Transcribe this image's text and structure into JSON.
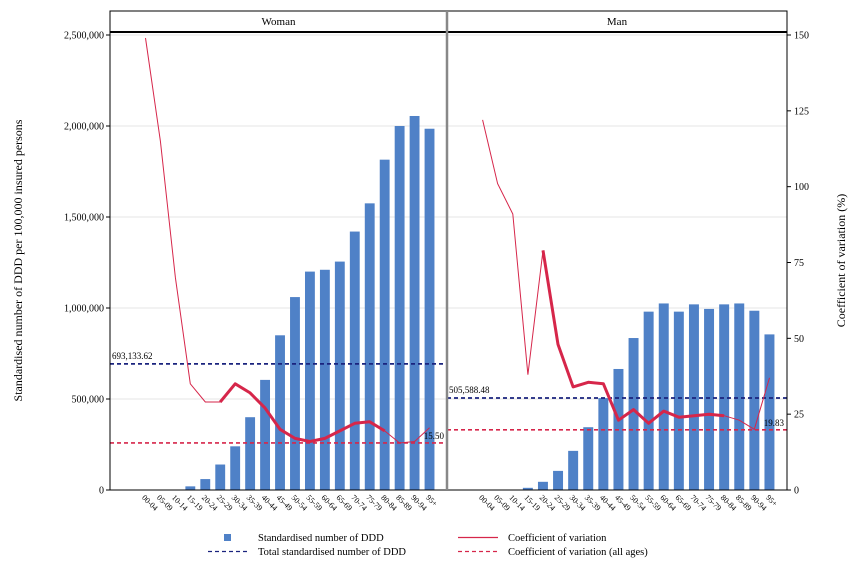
{
  "chart_data": {
    "type": "bar",
    "panels": [
      {
        "title": "Woman",
        "categories": [
          "00-04",
          "05-09",
          "10-14",
          "15-19",
          "20-24",
          "25-29",
          "30-34",
          "35-39",
          "40-44",
          "45-49",
          "50-54",
          "55-59",
          "60-64",
          "65-69",
          "70-74",
          "75-79",
          "80-84",
          "85-89",
          "90-94",
          "95+"
        ],
        "series": [
          {
            "name": "Standardised number of DDD",
            "axis": "left",
            "kind": "bar",
            "values": [
              0,
              0,
              0,
              20000,
              60000,
              140000,
              240000,
              400000,
              605000,
              850000,
              1060000,
              1200000,
              1210000,
              1255000,
              1420000,
              1575000,
              1815000,
              2000000,
              2055000,
              1985000
            ]
          },
          {
            "name": "Coefficient of variation",
            "axis": "right",
            "kind": "line",
            "values": [
              149,
              115,
              70,
              35,
              29,
              29,
              35,
              32,
              27,
              20,
              17,
              16,
              17,
              19.5,
              22,
              22.5,
              19.5,
              15.5,
              16,
              20.5
            ],
            "emphasis": [
              false,
              false,
              false,
              false,
              false,
              true,
              true,
              true,
              true,
              true,
              true,
              true,
              true,
              true,
              true,
              true,
              true,
              false,
              false,
              false
            ]
          }
        ],
        "total_standardised": 693133.62,
        "total_label": "693,133.62",
        "cv_all_ages": 15.5,
        "cv_label": "15.50"
      },
      {
        "title": "Man",
        "categories": [
          "00-04",
          "05-09",
          "10-14",
          "15-19",
          "20-24",
          "25-29",
          "30-34",
          "35-39",
          "40-44",
          "45-49",
          "50-54",
          "55-59",
          "60-64",
          "65-69",
          "70-74",
          "75-79",
          "80-84",
          "85-89",
          "90-94",
          "95+"
        ],
        "series": [
          {
            "name": "Standardised number of DDD",
            "axis": "left",
            "kind": "bar",
            "values": [
              0,
              0,
              0,
              12000,
              45000,
              105000,
              215000,
              345000,
              505000,
              665000,
              835000,
              980000,
              1025000,
              980000,
              1020000,
              995000,
              1020000,
              1025000,
              985000,
              855000
            ]
          },
          {
            "name": "Coefficient of variation",
            "axis": "right",
            "kind": "line",
            "values": [
              122,
              101,
              91,
              38,
              79,
              48,
              34,
              35.5,
              35,
              23,
              26.5,
              22,
              26,
              24,
              24.5,
              25,
              24.5,
              23,
              20,
              37
            ],
            "emphasis": [
              false,
              false,
              false,
              false,
              true,
              true,
              true,
              true,
              true,
              true,
              true,
              true,
              true,
              true,
              true,
              true,
              true,
              false,
              false,
              false
            ]
          }
        ],
        "total_standardised": 505588.48,
        "total_label": "505,588.48",
        "cv_all_ages": 19.83,
        "cv_label": "19.83"
      }
    ],
    "ylabel": "Standardised number of DDD per 100,000 insured persons",
    "ylabel_right": "Coefficient of variation (%)",
    "ylim": [
      0,
      2500000
    ],
    "ylim_right": [
      0,
      150
    ],
    "yticks": [
      0,
      500000,
      1000000,
      1500000,
      2000000,
      2500000
    ],
    "yticks_labels": [
      "0",
      "500,000",
      "1,000,000",
      "1,500,000",
      "2,000,000",
      "2,500,000"
    ],
    "yticks_right": [
      0,
      25,
      50,
      75,
      100,
      125,
      150
    ],
    "yticks_right_labels": [
      "0",
      "25",
      "50",
      "75",
      "100",
      "125",
      "150"
    ],
    "grid": true,
    "legend_position": "bottom",
    "legend": [
      {
        "label": "Standardised number of DDD",
        "style": "bar"
      },
      {
        "label": "Coefficient of variation",
        "style": "solid-line"
      },
      {
        "label": "Total standardised number of DDD",
        "style": "dashed-line"
      },
      {
        "label": "Coefficient of variation (all ages)",
        "style": "dashed-line"
      }
    ],
    "colors": {
      "bar": "#4f81c7",
      "cv_line": "#d6264a",
      "total_line": "#1a237e",
      "cv_all_line": "#d6264a"
    }
  }
}
